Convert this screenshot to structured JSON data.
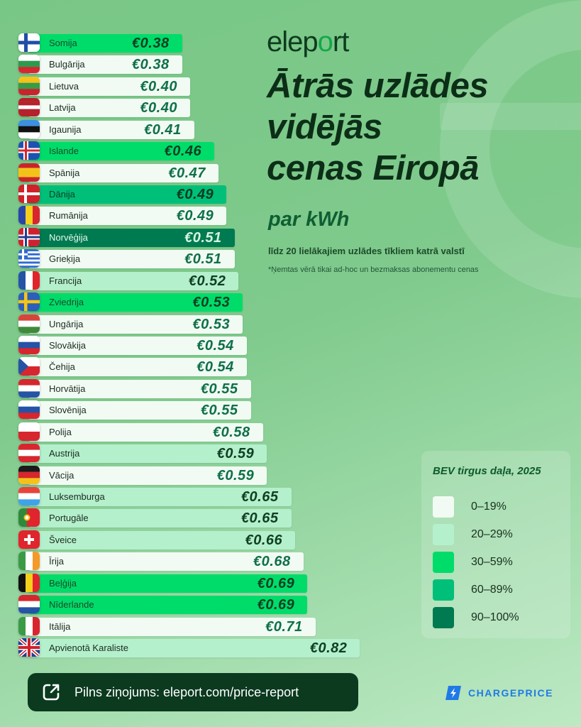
{
  "brand": {
    "logo_prefix": "elep",
    "logo_o": "o",
    "logo_suffix": "rt"
  },
  "header": {
    "title_line1": "Ātrās uzlādes",
    "title_line2": "vidējās",
    "title_line3": "cenas Eiropā",
    "subtitle": "par kWh",
    "note": "līdz 20 lielākajiem uzlādes tīkliem katrā valstī",
    "footnote": "*Ņemtas vērā tikai ad-hoc un bezmaksas abonementu cenas"
  },
  "chart_data": {
    "type": "bar",
    "orientation": "horizontal",
    "currency": "€",
    "categories": [
      "Somija",
      "Bulgārija",
      "Lietuva",
      "Latvija",
      "Igaunija",
      "Islande",
      "Spānija",
      "Dānija",
      "Rumānija",
      "Norvēģija",
      "Grieķija",
      "Francija",
      "Zviedrija",
      "Ungārija",
      "Slovākija",
      "Čehija",
      "Horvātija",
      "Slovēnija",
      "Polija",
      "Austrija",
      "Vācija",
      "Luksemburga",
      "Portugāle",
      "Šveice",
      "Īrija",
      "Beļģija",
      "Nīderlande",
      "Itālija",
      "Apvienotā Karaliste"
    ],
    "values": [
      0.38,
      0.38,
      0.4,
      0.4,
      0.41,
      0.46,
      0.47,
      0.49,
      0.49,
      0.51,
      0.51,
      0.52,
      0.53,
      0.53,
      0.54,
      0.54,
      0.55,
      0.55,
      0.58,
      0.59,
      0.59,
      0.65,
      0.65,
      0.66,
      0.68,
      0.69,
      0.69,
      0.71,
      0.82
    ],
    "value_labels": [
      "€0.38",
      "€0.38",
      "€0.40",
      "€0.40",
      "€0.41",
      "€0.46",
      "€0.47",
      "€0.49",
      "€0.49",
      "€0.51",
      "€0.51",
      "€0.52",
      "€0.53",
      "€0.53",
      "€0.54",
      "€0.54",
      "€0.55",
      "€0.55",
      "€0.58",
      "€0.59",
      "€0.59",
      "€0.65",
      "€0.65",
      "€0.66",
      "€0.68",
      "€0.69",
      "€0.69",
      "€0.71",
      "€0.82"
    ],
    "bev_share_bracket": [
      2,
      0,
      0,
      0,
      0,
      2,
      0,
      3,
      0,
      4,
      0,
      1,
      2,
      0,
      0,
      0,
      0,
      0,
      0,
      1,
      0,
      1,
      1,
      1,
      0,
      2,
      2,
      0,
      1
    ],
    "flags": [
      "fi",
      "bg",
      "lt",
      "lv",
      "ee",
      "is",
      "es",
      "dk",
      "ro",
      "no",
      "gr",
      "fr",
      "se",
      "hu",
      "sk",
      "cz",
      "hr",
      "si",
      "pl",
      "at",
      "de",
      "lu",
      "pt",
      "ch",
      "ie",
      "be",
      "nl",
      "it",
      "gb"
    ],
    "legend": {
      "title": "BEV tirgus daļa, 2025",
      "items": [
        {
          "label": "0–19%",
          "color": "#f1fbf3"
        },
        {
          "label": "20–29%",
          "color": "#b5f0cd"
        },
        {
          "label": "30–59%",
          "color": "#00dc6a"
        },
        {
          "label": "60–89%",
          "color": "#00bf78"
        },
        {
          "label": "90–100%",
          "color": "#007a50"
        }
      ]
    }
  },
  "footer": {
    "cta_label": "Pilns ziņojums: eleport.com/price-report",
    "cta_icon": "external-link-icon",
    "partner": "CHARGEPRICE"
  }
}
